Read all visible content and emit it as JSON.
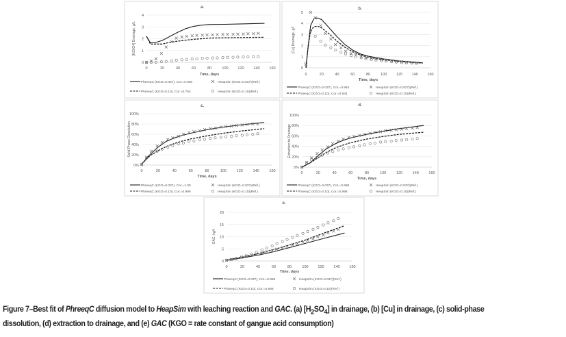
{
  "figure": {
    "caption": {
      "label": "Figure 7–",
      "parts": [
        "Best fit of ",
        "PhreeqC",
        " diffusion model to ",
        "HeapSim",
        " with leaching reaction and ",
        "GAC",
        "."
      ],
      "rest_line1": " (a) [H",
      "sub1": "2",
      "so": "SO",
      "sub2": "4",
      "rest_line1b": "] in drainage, (b) [Cu] in drainage, (c) solid-phase",
      "line2a": "dissolution, (d) extraction to drainage, and (e) ",
      "line2b": "GAC",
      "line2c": " (KGO = rate constant of gangue acid consumption)"
    }
  },
  "chart_data": [
    {
      "panel": "a.",
      "type": "line",
      "xlabel": "Time, days",
      "ylabel": "[H2SO4] Drainage, g/L",
      "xlim": [
        0,
        160
      ],
      "ylim": [
        0,
        4
      ],
      "xticks": [
        "0",
        "20",
        "40",
        "60",
        "80",
        "100",
        "120",
        "140",
        "160"
      ],
      "yticks": [
        "0",
        "1",
        "2",
        "3",
        "4"
      ],
      "grid": true,
      "legend_position": "bottom",
      "marker_x": [
        0,
        6,
        12,
        19,
        25,
        32,
        38,
        45,
        51,
        58,
        64,
        71,
        77,
        84,
        90,
        97,
        103,
        110,
        116,
        123,
        129,
        136,
        142
      ],
      "series": [
        {
          "name": "PhreeqC (KGO=0.037), Cor.=0.930",
          "style": "solid",
          "x": [
            0,
            5,
            10,
            20,
            30,
            40,
            50,
            60,
            70,
            80,
            100,
            120,
            150
          ],
          "y": [
            2.2,
            1.65,
            1.65,
            1.85,
            2.2,
            2.55,
            2.85,
            3.05,
            3.15,
            3.2,
            3.22,
            3.25,
            3.3
          ]
        },
        {
          "name": "PhreeqC (KGO=0.10), Cor.=0.763",
          "style": "dashed",
          "x": [
            0,
            5,
            20,
            30,
            40,
            60,
            80,
            100,
            150
          ],
          "y": [
            2.2,
            1.55,
            1.55,
            1.7,
            1.8,
            1.95,
            2.05,
            2.08,
            2.12
          ]
        },
        {
          "name": "HeapSim (KGO=0.037)(Ref.)",
          "style": "x",
          "y": [
            0,
            0.1,
            0.3,
            0.75,
            1.3,
            1.75,
            2.05,
            2.15,
            2.2,
            2.25,
            2.28,
            2.3,
            2.32,
            2.33,
            2.35,
            2.36,
            2.37,
            2.38,
            2.39,
            2.4,
            2.42,
            2.43,
            2.45
          ]
        },
        {
          "name": "HeapSim (KGO=0.10)(Ref.)",
          "style": "o",
          "y": [
            0,
            0,
            0,
            0.05,
            0.08,
            0.12,
            0.18,
            0.22,
            0.25,
            0.28,
            0.3,
            0.33,
            0.35,
            0.37,
            0.38,
            0.4,
            0.42,
            0.43,
            0.44,
            0.45,
            0.46,
            0.47,
            0.48
          ]
        }
      ]
    },
    {
      "panel": "b.",
      "type": "line",
      "xlabel": "Time, days",
      "ylabel": "[Cu] Drainage, g/l",
      "xlim": [
        0,
        160
      ],
      "ylim": [
        0,
        5
      ],
      "xticks": [
        "0",
        "20",
        "40",
        "60",
        "80",
        "100",
        "120",
        "140",
        "160"
      ],
      "yticks": [
        "0",
        "1",
        "2",
        "3",
        "4",
        "5"
      ],
      "grid": true,
      "legend_position": "bottom",
      "marker_x": [
        0,
        6,
        12,
        19,
        25,
        32,
        38,
        45,
        51,
        58,
        64,
        71,
        77,
        84,
        90,
        97,
        103,
        110,
        116,
        123,
        129,
        136,
        142
      ],
      "series": [
        {
          "name": "PhreeqC (KGO=0.037), Cor.=0.954",
          "style": "solid",
          "x": [
            0,
            3,
            6,
            10,
            14,
            20,
            30,
            40,
            50,
            60,
            70,
            80,
            100,
            120,
            150
          ],
          "y": [
            0,
            2,
            3.8,
            4.4,
            4.5,
            4.35,
            3.6,
            2.8,
            2.1,
            1.6,
            1.25,
            1.05,
            0.8,
            0.62,
            0.45
          ]
        },
        {
          "name": "PhreeqC (KGO=0.10), Cor.=0.944",
          "style": "dashed",
          "x": [
            0,
            3,
            6,
            10,
            15,
            20,
            30,
            40,
            50,
            60,
            70,
            80,
            100,
            120,
            150
          ],
          "y": [
            0,
            2,
            3.3,
            3.7,
            3.75,
            3.6,
            3.05,
            2.4,
            1.85,
            1.45,
            1.15,
            0.95,
            0.72,
            0.58,
            0.42
          ]
        },
        {
          "name": "HeapSim (KGO=0.037)(Ref.)",
          "style": "x",
          "y": [
            0.3,
            5,
            4.5,
            3.8,
            3.1,
            2.6,
            2.1,
            1.8,
            1.5,
            1.3,
            1.15,
            1.0,
            0.9,
            0.85,
            0.8,
            0.72,
            0.68,
            0.62,
            0.58,
            0.55,
            0.5,
            0.48,
            0.45
          ]
        },
        {
          "name": "HeapSim (KGO=0.10)(Ref.)",
          "style": "o",
          "y": [
            0.4,
            3.3,
            2.85,
            2.4,
            2.05,
            1.8,
            1.6,
            1.4,
            1.25,
            1.1,
            1.0,
            0.9,
            0.82,
            0.75,
            0.7,
            0.65,
            0.6,
            0.55,
            0.52,
            0.48,
            0.45,
            0.42,
            0.4
          ]
        }
      ]
    },
    {
      "panel": "c.",
      "type": "line",
      "xlabel": "Time, days",
      "ylabel": "Solid Phase Dissolution",
      "xlim": [
        0,
        160
      ],
      "ylim": [
        0,
        100
      ],
      "xticks": [
        "0",
        "20",
        "40",
        "60",
        "80",
        "100",
        "120",
        "140",
        "160"
      ],
      "yticks": [
        "0%",
        "20%",
        "40%",
        "60%",
        "80%",
        "100%"
      ],
      "grid": true,
      "legend_position": "bottom",
      "marker_x": [
        0,
        6,
        12,
        19,
        25,
        32,
        38,
        45,
        51,
        58,
        64,
        71,
        77,
        84,
        90,
        97,
        103,
        110,
        116,
        123,
        129,
        136,
        142
      ],
      "series": [
        {
          "name": "PhreeqC (KGO=0.037), Cor.=1.00",
          "style": "solid",
          "x": [
            0,
            10,
            20,
            30,
            40,
            50,
            60,
            80,
            100,
            120,
            150
          ],
          "y": [
            2,
            20,
            35,
            46,
            53,
            58,
            62,
            69,
            74,
            78,
            83
          ]
        },
        {
          "name": "PhreeqC (KGO=0.10), Cor.=0.999",
          "style": "dashed",
          "x": [
            0,
            10,
            20,
            30,
            40,
            50,
            60,
            80,
            100,
            120,
            150
          ],
          "y": [
            2,
            18,
            28,
            36,
            42,
            47,
            51,
            57,
            62,
            66,
            71
          ]
        },
        {
          "name": "HeapSim (KGO=0.037)(Ref.)",
          "style": "x",
          "y": [
            1,
            15,
            27,
            37,
            44,
            50,
            53,
            56,
            60,
            63,
            65,
            67,
            69,
            71,
            72,
            74,
            75,
            76,
            77,
            78,
            79,
            80,
            80
          ]
        },
        {
          "name": "HeapSim (KGO=0.10)(Ref.)",
          "style": "o",
          "y": [
            1,
            14,
            22,
            27,
            31,
            35,
            38,
            41,
            43,
            46,
            47,
            49,
            50,
            52,
            53,
            54,
            55,
            56,
            57,
            58,
            59,
            60,
            61
          ]
        }
      ]
    },
    {
      "panel": "d.",
      "type": "line",
      "xlabel": "Time, days",
      "ylabel": "Extraction to Drainage",
      "xlim": [
        0,
        160
      ],
      "ylim": [
        0,
        100
      ],
      "xticks": [
        "0",
        "20",
        "40",
        "60",
        "80",
        "100",
        "120",
        "140",
        "160"
      ],
      "yticks": [
        "0%",
        "20%",
        "40%",
        "60%",
        "80%",
        "100%"
      ],
      "grid": true,
      "legend_position": "bottom",
      "marker_x": [
        0,
        6,
        12,
        19,
        25,
        32,
        38,
        45,
        51,
        58,
        64,
        71,
        77,
        84,
        90,
        97,
        103,
        110,
        116,
        123,
        129,
        136,
        142
      ],
      "series": [
        {
          "name": "PhreeqC (KGO=0.037), Cor.=0.998",
          "style": "solid",
          "x": [
            0,
            10,
            20,
            30,
            40,
            50,
            60,
            80,
            100,
            120,
            150
          ],
          "y": [
            0,
            8,
            22,
            35,
            44,
            51,
            56,
            63,
            69,
            74,
            80
          ]
        },
        {
          "name": "PhreeqC (KGO=0.10), Cor.=0.998",
          "style": "dashed",
          "x": [
            0,
            10,
            20,
            30,
            40,
            50,
            60,
            80,
            100,
            120,
            150
          ],
          "y": [
            0,
            8,
            18,
            28,
            36,
            42,
            47,
            54,
            59,
            63,
            67
          ]
        },
        {
          "name": "HeapSim (KGO=0.037)(Ref.)",
          "style": "x",
          "y": [
            0,
            9,
            18,
            26,
            33,
            39,
            45,
            50,
            54,
            57,
            59,
            61,
            63,
            65,
            67,
            68,
            70,
            71,
            72,
            73,
            74,
            75,
            76
          ]
        },
        {
          "name": "HeapSim (KGO=0.10)(Ref.)",
          "style": "o",
          "y": [
            0,
            8,
            14,
            19,
            23,
            27,
            30,
            33,
            35,
            37,
            39,
            41,
            43,
            45,
            46,
            48,
            49,
            50,
            51,
            52,
            53,
            54,
            55
          ]
        }
      ]
    },
    {
      "panel": "e.",
      "type": "line",
      "xlabel": "Time, days",
      "ylabel": "GAC, kg/t",
      "xlim": [
        0,
        160
      ],
      "ylim": [
        0,
        20
      ],
      "xticks": [
        "0",
        "20",
        "40",
        "60",
        "80",
        "100",
        "120",
        "140",
        "160"
      ],
      "yticks": [
        "0",
        "5",
        "10",
        "15",
        "20"
      ],
      "grid": true,
      "legend_position": "bottom",
      "marker_x": [
        0,
        6,
        12,
        19,
        25,
        32,
        38,
        45,
        51,
        58,
        64,
        71,
        77,
        84,
        90,
        97,
        103,
        110,
        116,
        123,
        129,
        136,
        142
      ],
      "series": [
        {
          "name": "PhreeqC (KGO=0.037), Cor.=0.999",
          "style": "solid",
          "x": [
            0,
            20,
            40,
            60,
            80,
            100,
            120,
            150
          ],
          "y": [
            0.3,
            1.3,
            2.4,
            3.8,
            5.5,
            7.2,
            9,
            11.5
          ]
        },
        {
          "name": "PhreeqC (KGO=0.10), Cor.=0.999",
          "style": "dashed",
          "x": [
            0,
            20,
            40,
            60,
            80,
            100,
            120,
            150
          ],
          "y": [
            0.3,
            1.6,
            3.0,
            4.7,
            6.6,
            8.6,
            11,
            14.5
          ]
        },
        {
          "name": "HeapSim (KGO=0.037)(Ref.)",
          "style": "x",
          "y": [
            0.3,
            0.7,
            1.0,
            1.5,
            1.9,
            2.4,
            2.8,
            3.3,
            3.8,
            4.3,
            4.9,
            5.4,
            6,
            6.6,
            7.2,
            7.8,
            8.5,
            9.2,
            10,
            10.7,
            11.5,
            12.3,
            13
          ]
        },
        {
          "name": "HeapSim (KGO=0.10)(Ref.)",
          "style": "o",
          "y": [
            0.3,
            0.6,
            1.0,
            1.6,
            2.2,
            2.9,
            3.6,
            4.5,
            5.3,
            6.2,
            7.1,
            8.0,
            8.8,
            9.7,
            10.5,
            11.3,
            12.1,
            13,
            13.8,
            14.8,
            15.7,
            16.6,
            17.5
          ]
        }
      ]
    }
  ]
}
